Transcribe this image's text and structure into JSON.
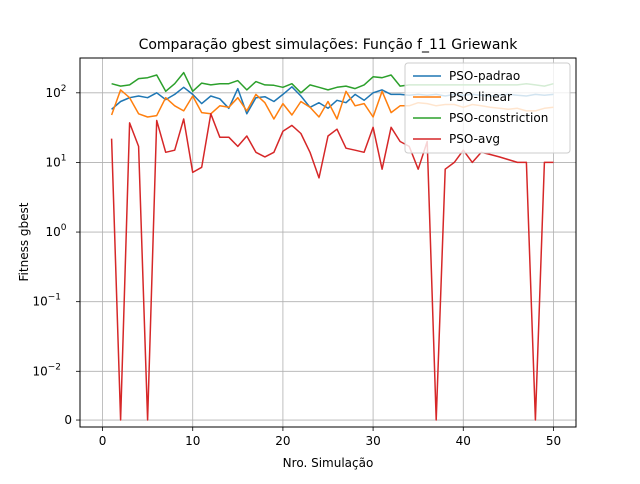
{
  "chart_data": {
    "type": "line",
    "title": "Comparação gbest simulações: Função f_11 Griewank",
    "xlabel": "Nro. Simulação",
    "ylabel": "Fitness gbest",
    "xlim": [
      -2.5,
      52.5
    ],
    "yscale": "symlog",
    "ylim_log10": [
      -2.8,
      2.5
    ],
    "x_ticks": [
      0,
      10,
      20,
      30,
      40,
      50
    ],
    "y_ticks": [
      {
        "value": 0,
        "label": "0"
      },
      {
        "value": 0.01,
        "label": "10",
        "exp": "−2"
      },
      {
        "value": 0.1,
        "label": "10",
        "exp": "−1"
      },
      {
        "value": 1,
        "label": "10",
        "exp": "0"
      },
      {
        "value": 10,
        "label": "10",
        "exp": "1"
      },
      {
        "value": 100,
        "label": "10",
        "exp": "2"
      }
    ],
    "grid": true,
    "legend_position": "top-right",
    "x": [
      1,
      2,
      3,
      4,
      5,
      6,
      7,
      8,
      9,
      10,
      11,
      12,
      13,
      14,
      15,
      16,
      17,
      18,
      19,
      20,
      21,
      22,
      23,
      24,
      25,
      26,
      27,
      28,
      29,
      30,
      31,
      32,
      33,
      34,
      35,
      36,
      37,
      38,
      39,
      40,
      41,
      42,
      43,
      44,
      45,
      46,
      47,
      48,
      49,
      50
    ],
    "series": [
      {
        "name": "PSO-padrao",
        "color": "#1f77b4",
        "values": [
          58,
          75,
          85,
          90,
          85,
          100,
          80,
          95,
          120,
          95,
          70,
          90,
          82,
          60,
          115,
          50,
          85,
          88,
          75,
          95,
          122,
          90,
          62,
          72,
          60,
          78,
          72,
          95,
          78,
          100,
          110,
          95,
          95,
          92,
          95,
          92,
          95,
          90,
          95,
          92,
          95,
          92,
          90,
          92,
          95,
          92,
          90,
          95,
          92,
          95
        ]
      },
      {
        "name": "PSO-linear",
        "color": "#ff7f0e",
        "values": [
          48,
          110,
          85,
          50,
          45,
          47,
          85,
          65,
          55,
          90,
          52,
          50,
          65,
          62,
          85,
          55,
          95,
          72,
          42,
          70,
          48,
          75,
          62,
          45,
          75,
          42,
          105,
          65,
          70,
          45,
          105,
          52,
          65,
          65,
          72,
          70,
          65,
          68,
          68,
          62,
          68,
          65,
          62,
          60,
          58,
          60,
          55,
          55,
          60,
          62
        ]
      },
      {
        "name": "PSO-constriction",
        "color": "#2ca02c",
        "values": [
          135,
          125,
          130,
          160,
          165,
          180,
          105,
          135,
          195,
          105,
          138,
          130,
          135,
          135,
          150,
          110,
          145,
          130,
          128,
          120,
          135,
          100,
          130,
          120,
          110,
          120,
          125,
          115,
          130,
          170,
          165,
          180,
          125,
          130,
          130,
          130,
          130,
          130,
          130,
          130,
          130,
          130,
          130,
          130,
          130,
          130,
          135,
          130,
          125,
          135
        ]
      },
      {
        "name": "PSO-avg",
        "color": "#d62728",
        "values": [
          22,
          0,
          37,
          17,
          0,
          40,
          14,
          15,
          42,
          7.2,
          8.5,
          50,
          23,
          23,
          17,
          24,
          14,
          12,
          14,
          28,
          34,
          26,
          14,
          6,
          24,
          30,
          16,
          15,
          14,
          32,
          8,
          32,
          20,
          17,
          8,
          20,
          0,
          8,
          10,
          15,
          10,
          14,
          13,
          12,
          11,
          10,
          10,
          0,
          10,
          10
        ]
      }
    ]
  }
}
